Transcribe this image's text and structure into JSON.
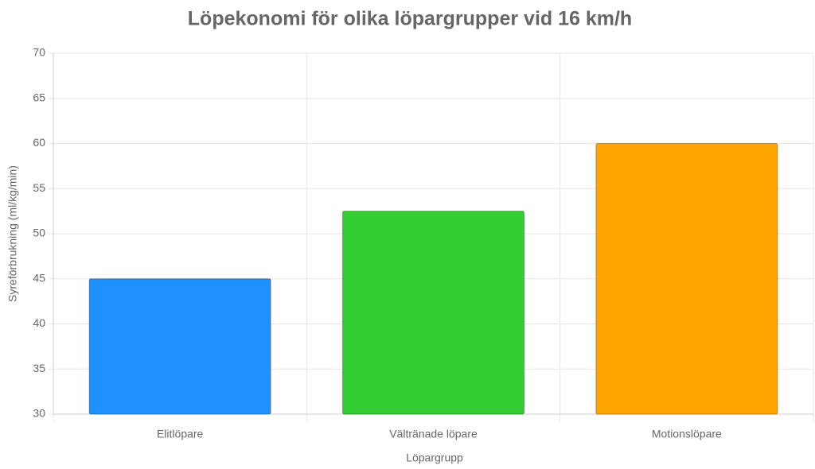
{
  "chart_data": {
    "type": "bar",
    "title": "Löpekonomi för olika löpargrupper vid 16 km/h",
    "x_label": "Löpargrupp",
    "y_label": "Syreförbrukning (ml/kg/min)",
    "categories": [
      "Elitlöpare",
      "Vältränade löpare",
      "Motionslöpare"
    ],
    "values": [
      45,
      52.5,
      60
    ],
    "colors": [
      "#1e90ff",
      "#32cd32",
      "#ffa500"
    ],
    "ylim": [
      30,
      70
    ],
    "yticks": [
      30,
      35,
      40,
      45,
      50,
      55,
      60,
      65,
      70
    ],
    "grid": true
  }
}
